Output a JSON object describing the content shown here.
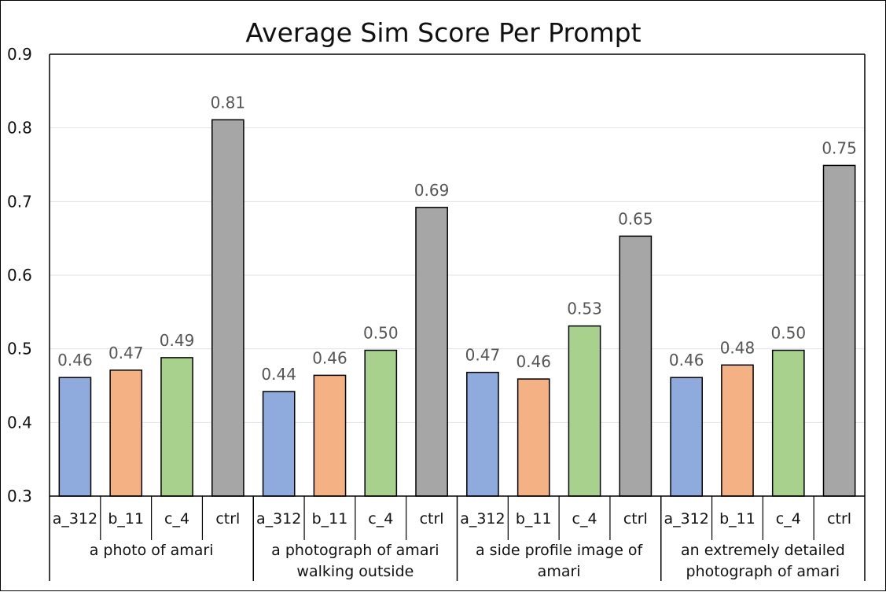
{
  "chart_data": {
    "type": "bar",
    "title": "Average Sim Score Per Prompt",
    "xlabel": "",
    "ylabel": "",
    "ylim": [
      0.3,
      0.9
    ],
    "yticks": [
      "0.3",
      "0.4",
      "0.5",
      "0.6",
      "0.7",
      "0.8",
      "0.9"
    ],
    "grid": true,
    "legend": "none",
    "groups": [
      {
        "label": "a photo of amari",
        "label_lines": [
          "a photo of amari"
        ],
        "categories": [
          "a_312",
          "b_11",
          "c_4",
          "ctrl"
        ],
        "values": [
          0.461,
          0.471,
          0.488,
          0.811
        ],
        "labels": [
          "0.46",
          "0.47",
          "0.49",
          "0.81"
        ]
      },
      {
        "label": "a photograph of amari walking outside",
        "label_lines": [
          "a photograph of amari",
          "walking outside"
        ],
        "categories": [
          "a_312",
          "b_11",
          "c_4",
          "ctrl"
        ],
        "values": [
          0.442,
          0.464,
          0.498,
          0.692
        ],
        "labels": [
          "0.44",
          "0.46",
          "0.50",
          "0.69"
        ]
      },
      {
        "label": "a side profile image of amari",
        "label_lines": [
          "a side profile image of",
          "amari"
        ],
        "categories": [
          "a_312",
          "b_11",
          "c_4",
          "ctrl"
        ],
        "values": [
          0.468,
          0.459,
          0.531,
          0.653
        ],
        "labels": [
          "0.47",
          "0.46",
          "0.53",
          "0.65"
        ]
      },
      {
        "label": "an extremely detailed photograph of amari",
        "label_lines": [
          "an extremely detailed",
          "photograph of amari"
        ],
        "categories": [
          "a_312",
          "b_11",
          "c_4",
          "ctrl"
        ],
        "values": [
          0.461,
          0.478,
          0.498,
          0.749
        ],
        "labels": [
          "0.46",
          "0.48",
          "0.50",
          "0.75"
        ]
      }
    ],
    "bar_colors": [
      "#8faadc",
      "#f4b183",
      "#a9d18e",
      "#a6a6a6"
    ],
    "bar_outline": "#000000"
  }
}
